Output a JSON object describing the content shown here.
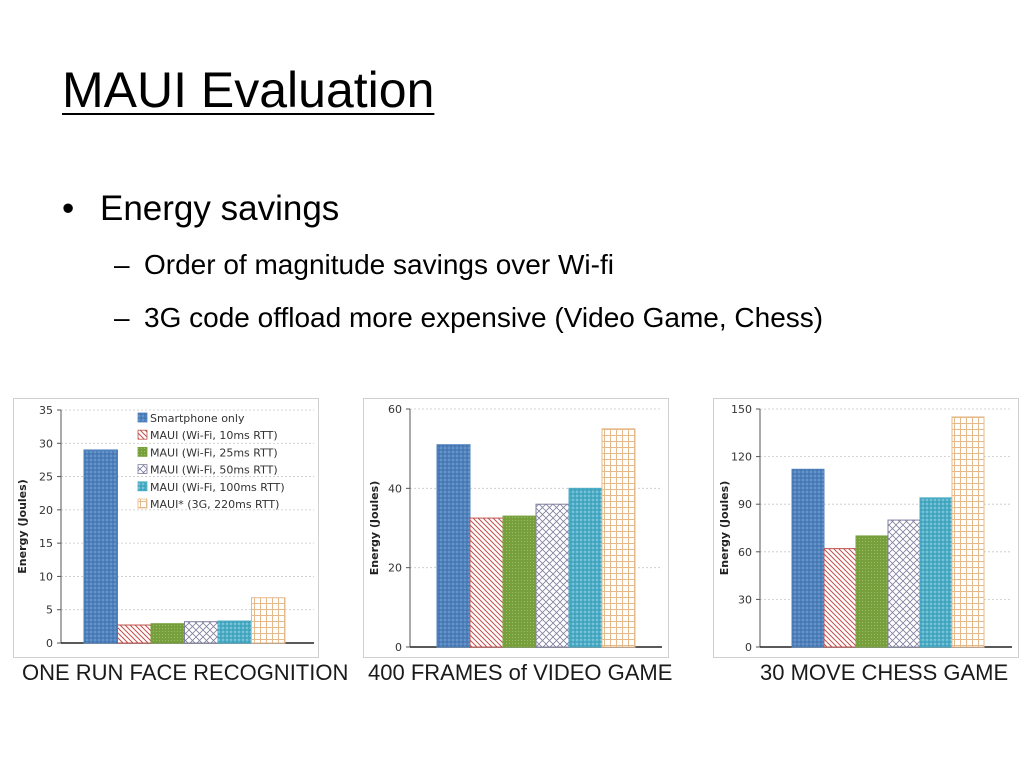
{
  "slide": {
    "title": "MAUI Evaluation",
    "bullet": {
      "marker": "•",
      "text": "Energy savings"
    },
    "subbullets": [
      {
        "marker": "–",
        "text": "Order of magnitude savings over Wi-fi"
      },
      {
        "marker": "–",
        "text": "3G code offload more expensive (Video Game, Chess)"
      }
    ]
  },
  "colors": {
    "smartphone": "#4f81bd",
    "wifi10": "#c0504d",
    "wifi25": "#77a03c",
    "wifi50": "#7f7f9f",
    "wifi100": "#4bacc6",
    "g3": "#e6b98a"
  },
  "chart_data": [
    {
      "type": "bar",
      "caption": "ONE RUN FACE RECOGNITION",
      "ylabel": "Energy (Joules)",
      "ylim": [
        0,
        35
      ],
      "yticks": [
        0,
        5,
        10,
        15,
        20,
        25,
        30,
        35
      ],
      "legend": "top-right",
      "grid": true,
      "series": [
        {
          "name": "Smartphone only",
          "value": 29,
          "pattern": "smartphone"
        },
        {
          "name": "MAUI (Wi-Fi, 10ms RTT)",
          "value": 2.7,
          "pattern": "wifi10"
        },
        {
          "name": "MAUI (Wi-Fi, 25ms RTT)",
          "value": 2.9,
          "pattern": "wifi25"
        },
        {
          "name": "MAUI (Wi-Fi, 50ms RTT)",
          "value": 3.2,
          "pattern": "wifi50"
        },
        {
          "name": "MAUI (Wi-Fi, 100ms RTT)",
          "value": 3.3,
          "pattern": "wifi100"
        },
        {
          "name": "MAUI* (3G, 220ms RTT)",
          "value": 6.8,
          "pattern": "g3"
        }
      ]
    },
    {
      "type": "bar",
      "caption": "400 FRAMES of VIDEO GAME",
      "ylabel": "Energy (Joules)",
      "ylim": [
        0,
        60
      ],
      "yticks": [
        0,
        20,
        40,
        60
      ],
      "grid": true,
      "series": [
        {
          "value": 51,
          "pattern": "smartphone"
        },
        {
          "value": 32.5,
          "pattern": "wifi10"
        },
        {
          "value": 33,
          "pattern": "wifi25"
        },
        {
          "value": 36,
          "pattern": "wifi50"
        },
        {
          "value": 40,
          "pattern": "wifi100"
        },
        {
          "value": 55,
          "pattern": "g3"
        }
      ]
    },
    {
      "type": "bar",
      "caption": "30 MOVE CHESS GAME",
      "ylabel": "Energy (Joules)",
      "ylim": [
        0,
        150
      ],
      "yticks": [
        0,
        30,
        60,
        90,
        120,
        150
      ],
      "grid": true,
      "series": [
        {
          "value": 112,
          "pattern": "smartphone"
        },
        {
          "value": 62,
          "pattern": "wifi10"
        },
        {
          "value": 70,
          "pattern": "wifi25"
        },
        {
          "value": 80,
          "pattern": "wifi50"
        },
        {
          "value": 94,
          "pattern": "wifi100"
        },
        {
          "value": 145,
          "pattern": "g3"
        }
      ]
    }
  ]
}
